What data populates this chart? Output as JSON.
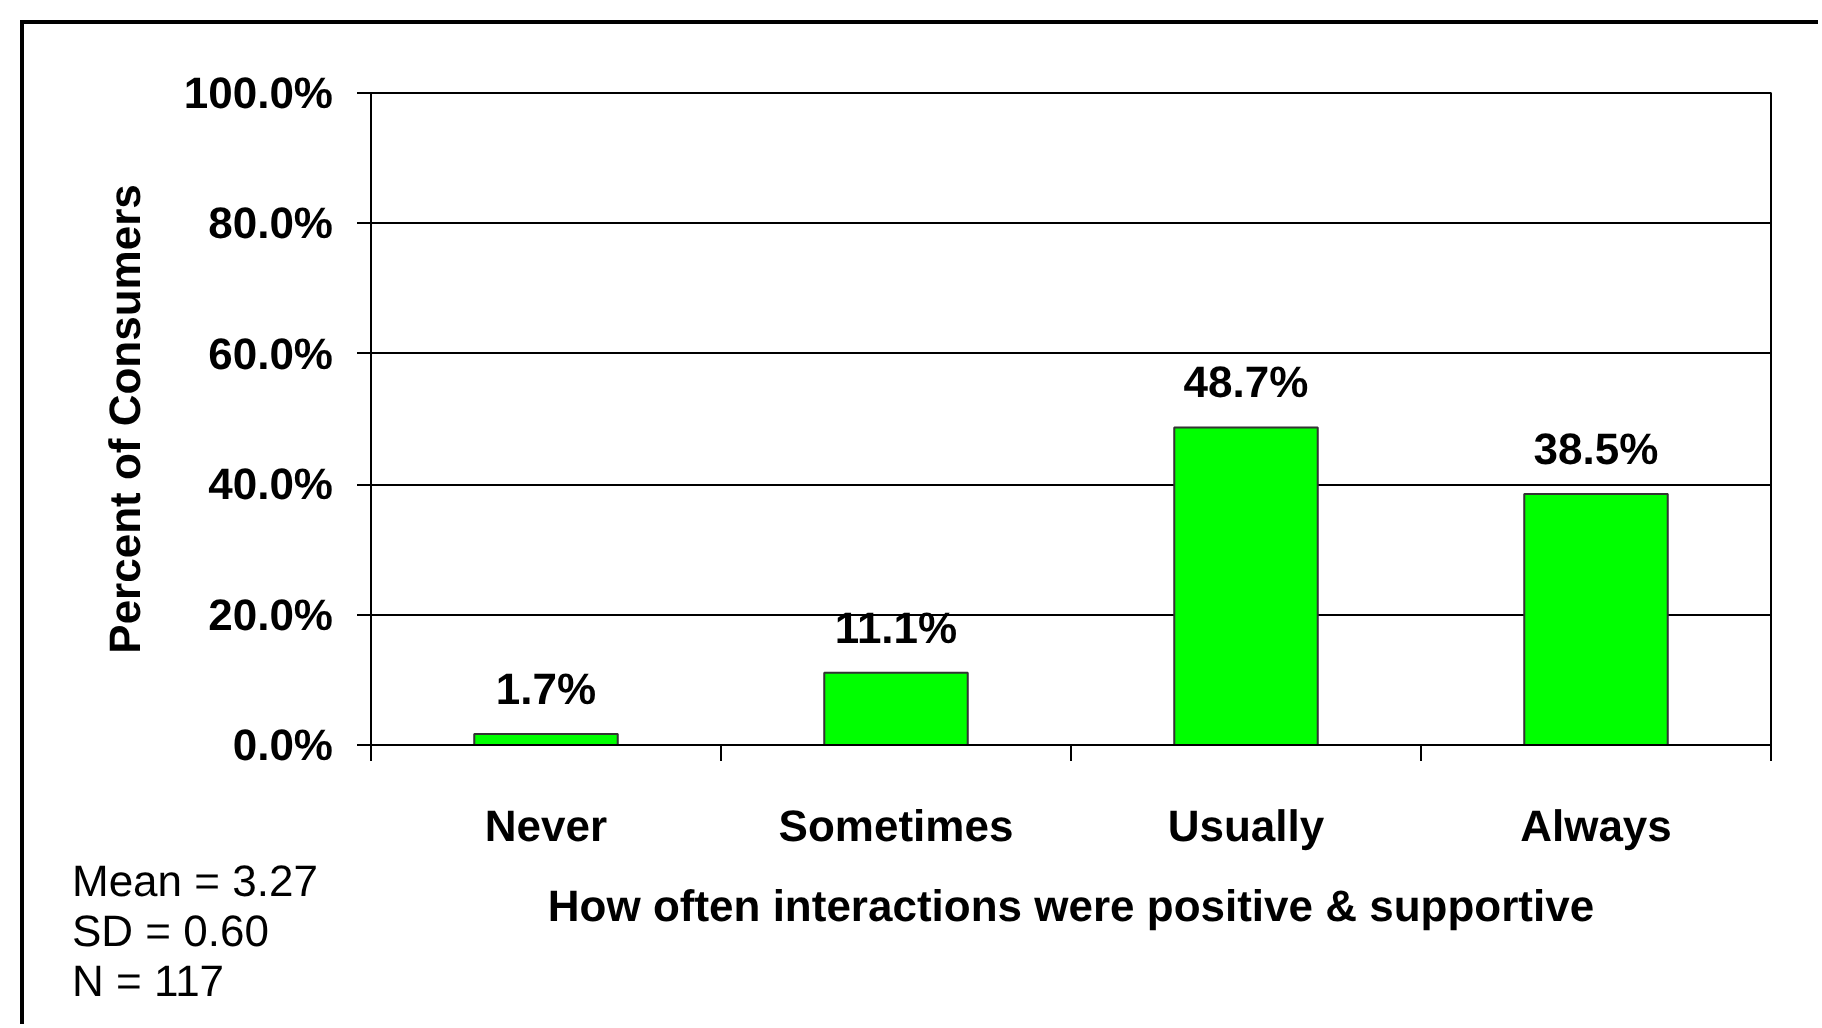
{
  "chart_data": {
    "type": "bar",
    "categories": [
      "Never",
      "Sometimes",
      "Usually",
      "Always"
    ],
    "values": [
      1.7,
      11.1,
      48.7,
      38.5
    ],
    "color": "#00ff00",
    "value_labels": [
      "1.7%",
      "11.1%",
      "48.7%",
      "38.5%"
    ],
    "xlabel": "How often interactions were positive & supportive",
    "ylabel": "Percent of Consumers",
    "ylim": [
      0,
      100
    ],
    "yticks": [
      {
        "value": 0,
        "label": "0.0%"
      },
      {
        "value": 20,
        "label": "20.0%"
      },
      {
        "value": 40,
        "label": "40.0%"
      },
      {
        "value": 60,
        "label": "60.0%"
      },
      {
        "value": 80,
        "label": "80.0%"
      },
      {
        "value": 100,
        "label": "100.0%"
      }
    ],
    "grid": "y",
    "annotations": [
      "Mean = 3.27",
      "SD = 0.60",
      "N = 117"
    ]
  }
}
